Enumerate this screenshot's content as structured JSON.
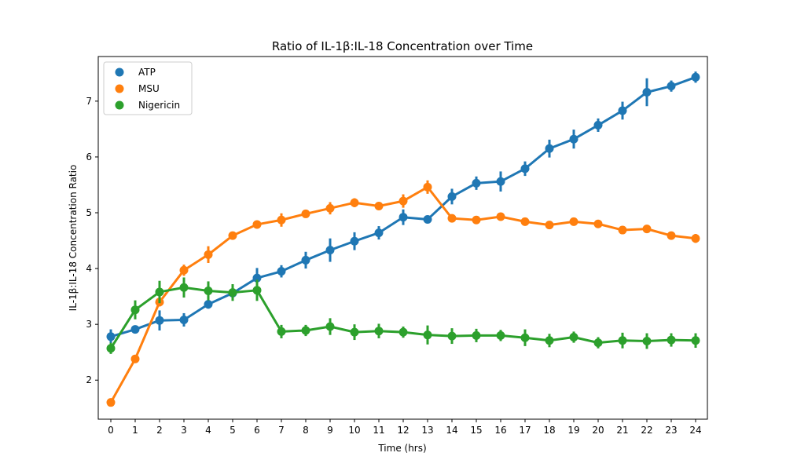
{
  "chart_data": {
    "type": "line",
    "title": "Ratio of IL-1β:IL-18 Concentration over Time",
    "xlabel": "Time (hrs)",
    "ylabel": "IL-1β:IL-18 Concentration Ratio",
    "x": [
      0,
      1,
      2,
      3,
      4,
      5,
      6,
      7,
      8,
      9,
      10,
      11,
      12,
      13,
      14,
      15,
      16,
      17,
      18,
      19,
      20,
      21,
      22,
      23,
      24
    ],
    "x_tick_labels": [
      "0",
      "1",
      "2",
      "3",
      "4",
      "5",
      "6",
      "7",
      "8",
      "9",
      "10",
      "11",
      "12",
      "13",
      "14",
      "15",
      "16",
      "17",
      "18",
      "19",
      "20",
      "21",
      "22",
      "23",
      "24"
    ],
    "y_ticks": [
      2,
      3,
      4,
      5,
      6,
      7
    ],
    "y_tick_labels": [
      "2",
      "3",
      "4",
      "5",
      "6",
      "7"
    ],
    "ylim": [
      1.3,
      7.8
    ],
    "grid": false,
    "legend_position": "upper left",
    "error_bars": true,
    "series": [
      {
        "name": "ATP",
        "color": "#1f77b4",
        "values": [
          2.78,
          2.91,
          3.07,
          3.08,
          3.36,
          3.56,
          3.83,
          3.95,
          4.15,
          4.33,
          4.49,
          4.64,
          4.92,
          4.88,
          5.29,
          5.53,
          5.56,
          5.79,
          6.15,
          6.32,
          6.57,
          6.83,
          7.16,
          7.27,
          7.43
        ],
        "errors": [
          0.13,
          0.06,
          0.18,
          0.12,
          0.08,
          0.09,
          0.18,
          0.11,
          0.15,
          0.21,
          0.16,
          0.12,
          0.14,
          0.05,
          0.14,
          0.12,
          0.18,
          0.13,
          0.16,
          0.17,
          0.12,
          0.16,
          0.25,
          0.1,
          0.1
        ]
      },
      {
        "name": "MSU",
        "color": "#ff7f0e",
        "values": [
          1.6,
          2.38,
          3.4,
          3.97,
          4.25,
          4.59,
          4.79,
          4.87,
          4.98,
          5.08,
          5.18,
          5.12,
          5.21,
          5.46,
          4.9,
          4.87,
          4.93,
          4.84,
          4.78,
          4.84,
          4.8,
          4.69,
          4.71,
          4.59,
          4.54
        ],
        "errors": [
          0.04,
          0.04,
          0.08,
          0.1,
          0.15,
          0.06,
          0.07,
          0.12,
          0.06,
          0.11,
          0.08,
          0.06,
          0.12,
          0.12,
          0.06,
          0.07,
          0.05,
          0.05,
          0.06,
          0.07,
          0.05,
          0.05,
          0.05,
          0.06,
          0.08
        ]
      },
      {
        "name": "Nigericin",
        "color": "#2ca02c",
        "values": [
          2.57,
          3.26,
          3.58,
          3.66,
          3.6,
          3.57,
          3.61,
          2.87,
          2.89,
          2.96,
          2.86,
          2.88,
          2.86,
          2.81,
          2.79,
          2.8,
          2.8,
          2.76,
          2.71,
          2.77,
          2.67,
          2.71,
          2.7,
          2.72,
          2.71
        ],
        "errors": [
          0.1,
          0.17,
          0.2,
          0.18,
          0.17,
          0.15,
          0.19,
          0.12,
          0.1,
          0.15,
          0.14,
          0.13,
          0.1,
          0.17,
          0.14,
          0.12,
          0.1,
          0.15,
          0.12,
          0.1,
          0.1,
          0.14,
          0.14,
          0.12,
          0.13
        ]
      }
    ]
  }
}
